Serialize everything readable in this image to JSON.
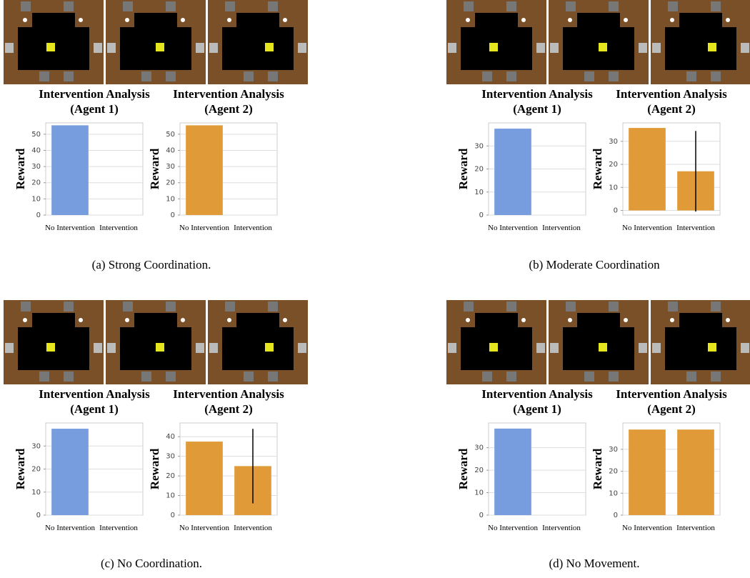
{
  "captions": [
    "(a) Strong Coordination.",
    "(b) Moderate Coordination",
    "(c) No Coordination.",
    "(d) No Movement."
  ],
  "chart_data": [
    {
      "type": "bar",
      "title": "Intervention Analysis (Agent 1)",
      "ylabel": "Reward",
      "categories": [
        "No Intervention",
        "Intervention"
      ],
      "values": [
        55.5,
        0
      ],
      "color": "#779ddf",
      "ylim": [
        0,
        57
      ],
      "yticks": [
        0,
        10,
        20,
        30,
        40,
        50
      ],
      "grid": true
    },
    {
      "type": "bar",
      "title": "Intervention Analysis (Agent 2)",
      "ylabel": "Reward",
      "categories": [
        "No Intervention",
        "Intervention"
      ],
      "values": [
        55.5,
        0
      ],
      "color": "#e09b38",
      "ylim": [
        0,
        57
      ],
      "yticks": [
        0,
        10,
        20,
        30,
        40,
        50
      ],
      "grid": true
    },
    {
      "type": "bar",
      "title": "Intervention Analysis (Agent 1)",
      "ylabel": "Reward",
      "categories": [
        "No Intervention",
        "Intervention"
      ],
      "values": [
        37.5,
        0
      ],
      "color": "#779ddf",
      "ylim": [
        0,
        40
      ],
      "yticks": [
        0,
        10,
        20,
        30
      ],
      "grid": true
    },
    {
      "type": "bar",
      "title": "Intervention Analysis (Agent 2)",
      "ylabel": "Reward",
      "categories": [
        "No Intervention",
        "Intervention"
      ],
      "values": [
        35.8,
        17
      ],
      "errors": [
        null,
        17.5
      ],
      "color": "#e09b38",
      "ylim": [
        -2,
        38
      ],
      "yticks": [
        0,
        10,
        20,
        30
      ],
      "grid": true
    },
    {
      "type": "bar",
      "title": "Intervention Analysis (Agent 1)",
      "ylabel": "Reward",
      "categories": [
        "No Intervention",
        "Intervention"
      ],
      "values": [
        37.5,
        0
      ],
      "color": "#779ddf",
      "ylim": [
        0,
        40
      ],
      "yticks": [
        0,
        10,
        20,
        30
      ],
      "grid": true
    },
    {
      "type": "bar",
      "title": "Intervention Analysis (Agent 2)",
      "ylabel": "Reward",
      "categories": [
        "No Intervention",
        "Intervention"
      ],
      "values": [
        37.5,
        25
      ],
      "errors": [
        null,
        19
      ],
      "color": "#e09b38",
      "ylim": [
        0,
        47
      ],
      "yticks": [
        0,
        10,
        20,
        30,
        40
      ],
      "grid": true
    },
    {
      "type": "bar",
      "title": "Intervention Analysis (Agent 1)",
      "ylabel": "Reward",
      "categories": [
        "No Intervention",
        "Intervention"
      ],
      "values": [
        38.5,
        0
      ],
      "color": "#779ddf",
      "ylim": [
        0,
        41
      ],
      "yticks": [
        0,
        10,
        20,
        30
      ],
      "grid": true
    },
    {
      "type": "bar",
      "title": "Intervention Analysis (Agent 2)",
      "ylabel": "Reward",
      "categories": [
        "No Intervention",
        "Intervention"
      ],
      "values": [
        39,
        39
      ],
      "color": "#e09b38",
      "ylim": [
        0,
        42
      ],
      "yticks": [
        0,
        10,
        20,
        30
      ],
      "grid": true
    }
  ]
}
